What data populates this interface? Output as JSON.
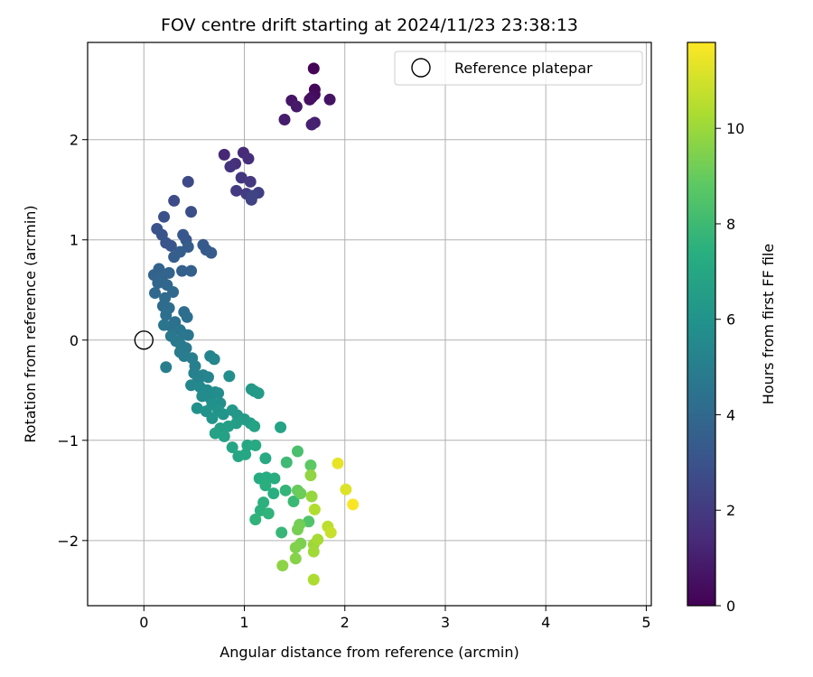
{
  "chart_data": {
    "type": "scatter",
    "title": "FOV centre drift starting at 2024/11/23 23:38:13",
    "xlabel": "Angular distance from reference (arcmin)",
    "ylabel": "Rotation from reference (arcmin)",
    "xlim": [
      -0.56,
      5.05
    ],
    "ylim": [
      -2.65,
      2.97
    ],
    "xticks": [
      0,
      1,
      2,
      3,
      4,
      5
    ],
    "yticks": [
      -2,
      -1,
      0,
      1,
      2
    ],
    "grid": true,
    "legend": {
      "placement": "top-right",
      "label": "Reference platepar"
    },
    "reference_point": {
      "x": 0,
      "y": 0
    },
    "colorbar": {
      "label": "Hours from first FF file",
      "range": [
        0,
        11.8
      ],
      "ticks": [
        0,
        2,
        4,
        6,
        8,
        10
      ],
      "colormap": "viridis"
    },
    "points": [
      {
        "x": 1.69,
        "y": 2.71,
        "t": 0.1
      },
      {
        "x": 1.7,
        "y": 2.5,
        "t": 0.2
      },
      {
        "x": 1.7,
        "y": 2.45,
        "t": 0.3
      },
      {
        "x": 1.67,
        "y": 2.42,
        "t": 0.4
      },
      {
        "x": 1.65,
        "y": 2.4,
        "t": 0.5
      },
      {
        "x": 1.85,
        "y": 2.4,
        "t": 0.6
      },
      {
        "x": 1.47,
        "y": 2.39,
        "t": 0.7
      },
      {
        "x": 1.52,
        "y": 2.33,
        "t": 0.8
      },
      {
        "x": 1.4,
        "y": 2.2,
        "t": 0.9
      },
      {
        "x": 1.7,
        "y": 2.17,
        "t": 1.0
      },
      {
        "x": 1.67,
        "y": 2.15,
        "t": 1.1
      },
      {
        "x": 0.8,
        "y": 1.85,
        "t": 1.3
      },
      {
        "x": 0.99,
        "y": 1.87,
        "t": 1.4
      },
      {
        "x": 1.04,
        "y": 1.81,
        "t": 1.5
      },
      {
        "x": 0.91,
        "y": 1.76,
        "t": 1.6
      },
      {
        "x": 0.86,
        "y": 1.73,
        "t": 1.7
      },
      {
        "x": 0.97,
        "y": 1.62,
        "t": 1.8
      },
      {
        "x": 1.06,
        "y": 1.58,
        "t": 1.9
      },
      {
        "x": 0.92,
        "y": 1.49,
        "t": 2.0
      },
      {
        "x": 1.02,
        "y": 1.46,
        "t": 2.1
      },
      {
        "x": 1.14,
        "y": 1.47,
        "t": 2.2
      },
      {
        "x": 1.07,
        "y": 1.4,
        "t": 2.3
      },
      {
        "x": 1.08,
        "y": 1.44,
        "t": 2.4
      },
      {
        "x": 0.44,
        "y": 1.58,
        "t": 2.6
      },
      {
        "x": 0.3,
        "y": 1.39,
        "t": 2.7
      },
      {
        "x": 0.47,
        "y": 1.28,
        "t": 2.8
      },
      {
        "x": 0.2,
        "y": 1.23,
        "t": 2.9
      },
      {
        "x": 0.13,
        "y": 1.11,
        "t": 3.0
      },
      {
        "x": 0.18,
        "y": 1.05,
        "t": 3.0
      },
      {
        "x": 0.22,
        "y": 0.97,
        "t": 3.1
      },
      {
        "x": 0.27,
        "y": 0.94,
        "t": 3.1
      },
      {
        "x": 0.39,
        "y": 1.05,
        "t": 3.2
      },
      {
        "x": 0.42,
        "y": 1.0,
        "t": 3.2
      },
      {
        "x": 0.59,
        "y": 0.95,
        "t": 3.3
      },
      {
        "x": 0.62,
        "y": 0.9,
        "t": 3.3
      },
      {
        "x": 0.67,
        "y": 0.87,
        "t": 3.4
      },
      {
        "x": 0.44,
        "y": 0.93,
        "t": 3.4
      },
      {
        "x": 0.36,
        "y": 0.88,
        "t": 3.5
      },
      {
        "x": 0.3,
        "y": 0.83,
        "t": 3.5
      },
      {
        "x": 0.47,
        "y": 0.69,
        "t": 3.6
      },
      {
        "x": 0.38,
        "y": 0.69,
        "t": 3.6
      },
      {
        "x": 0.15,
        "y": 0.71,
        "t": 3.7
      },
      {
        "x": 0.1,
        "y": 0.65,
        "t": 3.7
      },
      {
        "x": 0.25,
        "y": 0.67,
        "t": 3.8
      },
      {
        "x": 0.18,
        "y": 0.62,
        "t": 3.8
      },
      {
        "x": 0.14,
        "y": 0.57,
        "t": 3.9
      },
      {
        "x": 0.23,
        "y": 0.55,
        "t": 3.9
      },
      {
        "x": 0.11,
        "y": 0.47,
        "t": 4.0
      },
      {
        "x": 0.29,
        "y": 0.48,
        "t": 4.0
      },
      {
        "x": 0.21,
        "y": 0.42,
        "t": 4.1
      },
      {
        "x": 0.19,
        "y": 0.34,
        "t": 4.1
      },
      {
        "x": 0.25,
        "y": 0.32,
        "t": 4.2
      },
      {
        "x": 0.4,
        "y": 0.28,
        "t": 4.2
      },
      {
        "x": 0.43,
        "y": 0.23,
        "t": 4.3
      },
      {
        "x": 0.22,
        "y": 0.25,
        "t": 4.3
      },
      {
        "x": 0.31,
        "y": 0.18,
        "t": 4.4
      },
      {
        "x": 0.27,
        "y": 0.14,
        "t": 4.4
      },
      {
        "x": 0.2,
        "y": 0.15,
        "t": 4.5
      },
      {
        "x": 0.36,
        "y": 0.1,
        "t": 4.5
      },
      {
        "x": 0.39,
        "y": 0.06,
        "t": 4.6
      },
      {
        "x": 0.44,
        "y": 0.05,
        "t": 4.6
      },
      {
        "x": 0.27,
        "y": 0.04,
        "t": 4.7
      },
      {
        "x": 0.32,
        "y": -0.01,
        "t": 4.7
      },
      {
        "x": 0.37,
        "y": -0.05,
        "t": 4.8
      },
      {
        "x": 0.42,
        "y": -0.08,
        "t": 4.8
      },
      {
        "x": 0.36,
        "y": -0.12,
        "t": 4.9
      },
      {
        "x": 0.4,
        "y": -0.16,
        "t": 4.9
      },
      {
        "x": 0.48,
        "y": -0.18,
        "t": 5.0
      },
      {
        "x": 0.22,
        "y": -0.27,
        "t": 5.0
      },
      {
        "x": 0.51,
        "y": -0.26,
        "t": 5.1
      },
      {
        "x": 0.5,
        "y": -0.33,
        "t": 5.1
      },
      {
        "x": 0.59,
        "y": -0.35,
        "t": 5.2
      },
      {
        "x": 0.54,
        "y": -0.4,
        "t": 5.2
      },
      {
        "x": 0.64,
        "y": -0.37,
        "t": 5.3
      },
      {
        "x": 0.66,
        "y": -0.16,
        "t": 5.3
      },
      {
        "x": 0.7,
        "y": -0.19,
        "t": 5.4
      },
      {
        "x": 0.47,
        "y": -0.45,
        "t": 5.4
      },
      {
        "x": 0.56,
        "y": -0.47,
        "t": 5.5
      },
      {
        "x": 0.63,
        "y": -0.5,
        "t": 5.5
      },
      {
        "x": 0.58,
        "y": -0.56,
        "t": 5.6
      },
      {
        "x": 0.66,
        "y": -0.58,
        "t": 5.6
      },
      {
        "x": 0.71,
        "y": -0.52,
        "t": 5.7
      },
      {
        "x": 0.74,
        "y": -0.53,
        "t": 5.7
      },
      {
        "x": 0.85,
        "y": -0.36,
        "t": 5.8
      },
      {
        "x": 0.76,
        "y": -0.63,
        "t": 5.8
      },
      {
        "x": 0.68,
        "y": -0.64,
        "t": 5.9
      },
      {
        "x": 0.53,
        "y": -0.68,
        "t": 5.9
      },
      {
        "x": 0.62,
        "y": -0.71,
        "t": 6.0
      },
      {
        "x": 0.74,
        "y": -0.7,
        "t": 6.0
      },
      {
        "x": 0.79,
        "y": -0.74,
        "t": 6.1
      },
      {
        "x": 0.68,
        "y": -0.78,
        "t": 6.1
      },
      {
        "x": 0.88,
        "y": -0.7,
        "t": 6.2
      },
      {
        "x": 0.93,
        "y": -0.75,
        "t": 6.2
      },
      {
        "x": 1.07,
        "y": -0.49,
        "t": 6.3
      },
      {
        "x": 1.1,
        "y": -0.51,
        "t": 6.3
      },
      {
        "x": 1.14,
        "y": -0.53,
        "t": 6.4
      },
      {
        "x": 1.0,
        "y": -0.79,
        "t": 6.4
      },
      {
        "x": 1.06,
        "y": -0.83,
        "t": 6.5
      },
      {
        "x": 0.92,
        "y": -0.83,
        "t": 6.5
      },
      {
        "x": 0.84,
        "y": -0.86,
        "t": 6.6
      },
      {
        "x": 0.76,
        "y": -0.88,
        "t": 6.6
      },
      {
        "x": 0.71,
        "y": -0.93,
        "t": 6.7
      },
      {
        "x": 0.8,
        "y": -0.96,
        "t": 6.7
      },
      {
        "x": 1.1,
        "y": -0.86,
        "t": 6.8
      },
      {
        "x": 1.36,
        "y": -0.87,
        "t": 6.8
      },
      {
        "x": 0.88,
        "y": -1.07,
        "t": 6.9
      },
      {
        "x": 0.94,
        "y": -1.16,
        "t": 6.9
      },
      {
        "x": 1.01,
        "y": -1.14,
        "t": 7.0
      },
      {
        "x": 1.03,
        "y": -1.05,
        "t": 7.0
      },
      {
        "x": 1.11,
        "y": -1.05,
        "t": 7.1
      },
      {
        "x": 1.21,
        "y": -1.18,
        "t": 7.1
      },
      {
        "x": 1.15,
        "y": -1.38,
        "t": 7.2
      },
      {
        "x": 1.22,
        "y": -1.37,
        "t": 7.3
      },
      {
        "x": 1.3,
        "y": -1.38,
        "t": 7.3
      },
      {
        "x": 1.21,
        "y": -1.45,
        "t": 7.4
      },
      {
        "x": 1.29,
        "y": -1.53,
        "t": 7.4
      },
      {
        "x": 1.19,
        "y": -1.62,
        "t": 7.5
      },
      {
        "x": 1.16,
        "y": -1.7,
        "t": 7.5
      },
      {
        "x": 1.24,
        "y": -1.73,
        "t": 7.6
      },
      {
        "x": 1.11,
        "y": -1.79,
        "t": 7.6
      },
      {
        "x": 1.41,
        "y": -1.5,
        "t": 7.7
      },
      {
        "x": 1.37,
        "y": -1.92,
        "t": 7.8
      },
      {
        "x": 1.49,
        "y": -1.61,
        "t": 7.9
      },
      {
        "x": 1.42,
        "y": -1.22,
        "t": 8.0
      },
      {
        "x": 1.53,
        "y": -1.11,
        "t": 8.3
      },
      {
        "x": 1.64,
        "y": -1.81,
        "t": 8.5
      },
      {
        "x": 1.66,
        "y": -1.25,
        "t": 8.8
      },
      {
        "x": 1.53,
        "y": -1.5,
        "t": 9.0
      },
      {
        "x": 1.56,
        "y": -1.53,
        "t": 9.1
      },
      {
        "x": 1.55,
        "y": -1.84,
        "t": 9.2
      },
      {
        "x": 1.53,
        "y": -1.89,
        "t": 9.3
      },
      {
        "x": 1.56,
        "y": -2.03,
        "t": 9.4
      },
      {
        "x": 1.51,
        "y": -2.07,
        "t": 9.5
      },
      {
        "x": 1.51,
        "y": -2.18,
        "t": 9.6
      },
      {
        "x": 1.38,
        "y": -2.25,
        "t": 9.7
      },
      {
        "x": 1.66,
        "y": -1.35,
        "t": 9.8
      },
      {
        "x": 1.67,
        "y": -1.56,
        "t": 9.9
      },
      {
        "x": 1.69,
        "y": -2.04,
        "t": 10.0
      },
      {
        "x": 1.69,
        "y": -2.11,
        "t": 10.1
      },
      {
        "x": 1.73,
        "y": -1.99,
        "t": 10.2
      },
      {
        "x": 1.69,
        "y": -2.39,
        "t": 10.3
      },
      {
        "x": 1.7,
        "y": -1.69,
        "t": 10.4
      },
      {
        "x": 1.83,
        "y": -1.86,
        "t": 10.6
      },
      {
        "x": 1.86,
        "y": -1.92,
        "t": 10.8
      },
      {
        "x": 2.01,
        "y": -1.49,
        "t": 11.2
      },
      {
        "x": 1.93,
        "y": -1.23,
        "t": 11.4
      },
      {
        "x": 2.08,
        "y": -1.64,
        "t": 11.7
      }
    ]
  }
}
